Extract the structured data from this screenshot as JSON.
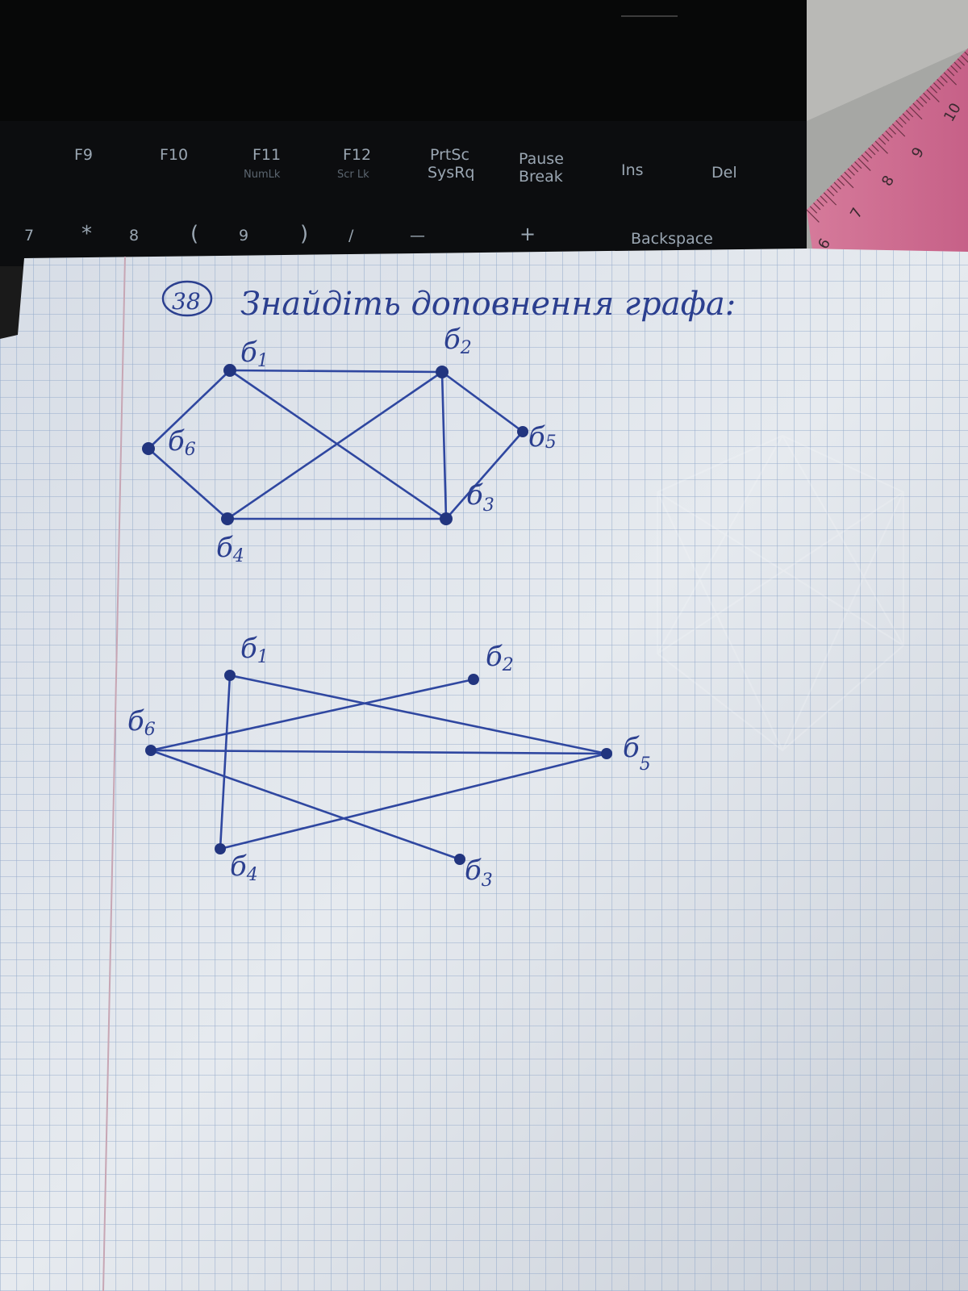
{
  "keyboard": {
    "keys_row1": [
      {
        "label": "F9",
        "sub": ""
      },
      {
        "label": "F10",
        "sub": ""
      },
      {
        "label": "F11",
        "sub": "NumLk"
      },
      {
        "label": "F12",
        "sub": "Scr Lk"
      },
      {
        "label": "PrtSc",
        "sub": "SysRq"
      },
      {
        "label": "Pause",
        "sub": "Break"
      },
      {
        "label": "Ins",
        "sub": ""
      },
      {
        "label": "Del",
        "sub": ""
      }
    ],
    "keys_row2": [
      "7",
      "*",
      "8",
      "(",
      "9",
      ")",
      "/",
      "—",
      "+",
      "Backspace"
    ]
  },
  "ruler": {
    "numbers": [
      "10",
      "9",
      "8",
      "7",
      "6"
    ]
  },
  "paper": {
    "task_number": "38",
    "title": "Знайдіть доповнення графа:",
    "graph_original": {
      "vertices": [
        {
          "id": "v1",
          "label": "б",
          "sub": "1"
        },
        {
          "id": "v2",
          "label": "б",
          "sub": "2"
        },
        {
          "id": "v3",
          "label": "б",
          "sub": "3"
        },
        {
          "id": "v4",
          "label": "б",
          "sub": "4"
        },
        {
          "id": "v5",
          "label": "б",
          "sub": "5"
        },
        {
          "id": "v6",
          "label": "б",
          "sub": "6"
        }
      ],
      "edges": [
        [
          "v1",
          "v2"
        ],
        [
          "v1",
          "v3"
        ],
        [
          "v1",
          "v6"
        ],
        [
          "v2",
          "v3"
        ],
        [
          "v2",
          "v4"
        ],
        [
          "v2",
          "v5"
        ],
        [
          "v3",
          "v4"
        ],
        [
          "v3",
          "v5"
        ],
        [
          "v4",
          "v6"
        ]
      ]
    },
    "graph_complement": {
      "vertices": [
        {
          "id": "v1",
          "label": "б",
          "sub": "1"
        },
        {
          "id": "v2",
          "label": "б",
          "sub": "2"
        },
        {
          "id": "v3",
          "label": "б",
          "sub": "3"
        },
        {
          "id": "v4",
          "label": "б",
          "sub": "4"
        },
        {
          "id": "v5",
          "label": "б",
          "sub": "5"
        },
        {
          "id": "v6",
          "label": "б",
          "sub": "6"
        }
      ],
      "edges": [
        [
          "v1",
          "v4"
        ],
        [
          "v1",
          "v5"
        ],
        [
          "v6",
          "v2"
        ],
        [
          "v6",
          "v5"
        ],
        [
          "v6",
          "v3"
        ],
        [
          "v4",
          "v5"
        ]
      ]
    }
  }
}
